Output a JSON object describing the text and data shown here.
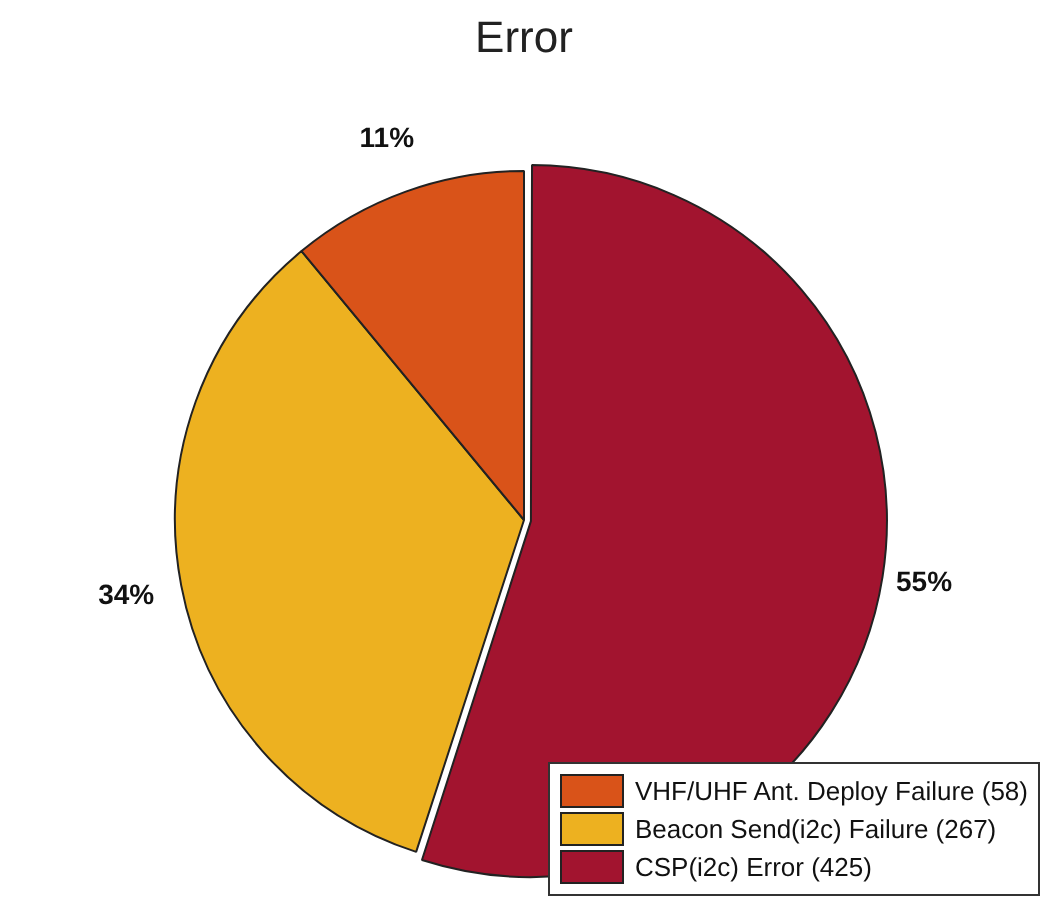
{
  "chart_data": {
    "type": "pie",
    "title": "Error",
    "categories": [
      "VHF/UHF Ant. Deploy Failure (58)",
      "Beacon Send(i2c) Failure (267)",
      "CSP(i2c) Error (425)"
    ],
    "values": [
      11,
      34,
      55
    ],
    "value_labels": [
      "11%",
      "34%",
      "55%"
    ],
    "colors": [
      "#d95319",
      "#edb120",
      "#a2142f"
    ],
    "legend": "bottom right"
  }
}
